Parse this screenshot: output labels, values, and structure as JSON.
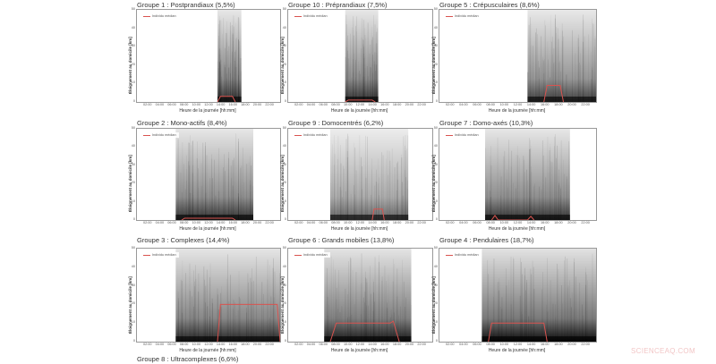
{
  "chart_data": [
    {
      "type": "line",
      "title": "Groupe 1 : Postprandiaux (5,5%)",
      "xlabel": "Heure de la journée [hh:mm]",
      "ylabel": "Éloignement au domicile [km]",
      "ylim": [
        0,
        50
      ],
      "yticks": [
        "0",
        "10",
        "20",
        "30",
        "40",
        "50"
      ],
      "xticks": [
        "02:00",
        "04:00",
        "06:00",
        "08:00",
        "10:00",
        "12:00",
        "14:00",
        "16:00",
        "18:00",
        "20:00",
        "22:00"
      ],
      "legend": [
        "Individu médian"
      ],
      "density": {
        "start": 13.5,
        "end": 17.5,
        "peak": 0.8
      },
      "series": [
        {
          "name": "Individu médian",
          "x": [
            13.5,
            14,
            15,
            16,
            16.5
          ],
          "y": [
            0,
            3,
            3,
            3,
            0
          ]
        }
      ]
    },
    {
      "type": "line",
      "title": "Groupe 10 : Préprandiaux (7,5%)",
      "xlabel": "Heure de la journée [hh:mm]",
      "ylabel": "Éloignement au domicile [km]",
      "ylim": [
        0,
        50
      ],
      "yticks": [
        "0",
        "10",
        "20",
        "30",
        "40",
        "50"
      ],
      "xticks": [
        "02:00",
        "04:00",
        "06:00",
        "08:00",
        "10:00",
        "12:00",
        "14:00",
        "16:00",
        "18:00",
        "20:00",
        "22:00"
      ],
      "legend": [
        "Individu médian"
      ],
      "density": {
        "start": 9.5,
        "end": 15,
        "peak": 0.8
      },
      "series": [
        {
          "name": "Individu médian",
          "x": [
            9.5,
            10,
            14,
            14.5
          ],
          "y": [
            0,
            1,
            1,
            0
          ]
        }
      ]
    },
    {
      "type": "line",
      "title": "Groupe 5 : Crépusculaires (8,6%)",
      "xlabel": "Heure de la journée [hh:mm]",
      "ylabel": "Éloignement au domicile [km]",
      "ylim": [
        0,
        50
      ],
      "yticks": [
        "0",
        "10",
        "20",
        "30",
        "40",
        "50"
      ],
      "xticks": [
        "02:00",
        "04:00",
        "06:00",
        "08:00",
        "10:00",
        "12:00",
        "14:00",
        "16:00",
        "18:00",
        "20:00",
        "22:00"
      ],
      "legend": [
        "Individu médian"
      ],
      "density": {
        "start": 13.5,
        "end": 24,
        "peak": 0.75
      },
      "series": [
        {
          "name": "Individu médian",
          "x": [
            16,
            16.5,
            18.5,
            19
          ],
          "y": [
            0,
            9,
            9,
            0
          ]
        }
      ]
    },
    {
      "type": "line",
      "title": "Groupe 2 : Mono-actifs (8,4%)",
      "xlabel": "Heure de la journée [hh:mm]",
      "ylabel": "Éloignement au domicile [km]",
      "ylim": [
        0,
        50
      ],
      "yticks": [
        "0",
        "10",
        "20",
        "30",
        "40",
        "50"
      ],
      "xticks": [
        "02:00",
        "04:00",
        "06:00",
        "08:00",
        "10:00",
        "12:00",
        "14:00",
        "16:00",
        "18:00",
        "20:00",
        "22:00"
      ],
      "legend": [
        "Individu médian"
      ],
      "density": {
        "start": 6.5,
        "end": 19.5,
        "peak": 0.8
      },
      "series": [
        {
          "name": "Individu médian",
          "x": [
            7.5,
            8,
            16,
            16.5
          ],
          "y": [
            0,
            1,
            1,
            0
          ]
        }
      ]
    },
    {
      "type": "line",
      "title": "Groupe 9 : Domocentrés (6,2%)",
      "xlabel": "Heure de la journée [hh:mm]",
      "ylabel": "Éloignement au domicile [km]",
      "ylim": [
        0,
        50
      ],
      "yticks": [
        "0",
        "10",
        "20",
        "30",
        "40",
        "50"
      ],
      "xticks": [
        "02:00",
        "04:00",
        "06:00",
        "08:00",
        "10:00",
        "12:00",
        "14:00",
        "16:00",
        "18:00",
        "20:00",
        "22:00"
      ],
      "legend": [
        "Individu médian"
      ],
      "density": {
        "start": 7,
        "end": 20,
        "peak": 0.6
      },
      "series": [
        {
          "name": "Individu médian",
          "x": [
            14,
            14.3,
            15.7,
            16
          ],
          "y": [
            0,
            6,
            6,
            0
          ]
        }
      ]
    },
    {
      "type": "line",
      "title": "Groupe 7 : Domo-axés (10,3%)",
      "xlabel": "Heure de la journée [hh:mm]",
      "ylabel": "Éloignement au domicile [km]",
      "ylim": [
        0,
        50
      ],
      "yticks": [
        "0",
        "10",
        "20",
        "30",
        "40",
        "50"
      ],
      "xticks": [
        "02:00",
        "04:00",
        "06:00",
        "08:00",
        "10:00",
        "12:00",
        "14:00",
        "16:00",
        "18:00",
        "20:00",
        "22:00"
      ],
      "legend": [
        "Individu médian"
      ],
      "density": {
        "start": 7,
        "end": 20,
        "peak": 0.8
      },
      "series": [
        {
          "name": "Individu médian",
          "x": [
            8,
            8.5,
            9,
            13.5,
            14,
            14.5
          ],
          "y": [
            0,
            2.5,
            0,
            0,
            2,
            0
          ]
        }
      ]
    },
    {
      "type": "line",
      "title": "Groupe 3 : Complexes (14,4%)",
      "xlabel": "Heure de la journée [hh:mm]",
      "ylabel": "Éloignement au domicile [km]",
      "ylim": [
        0,
        50
      ],
      "yticks": [
        "0",
        "10",
        "20",
        "30",
        "40",
        "50"
      ],
      "xticks": [
        "02:00",
        "04:00",
        "06:00",
        "08:00",
        "10:00",
        "12:00",
        "14:00",
        "16:00",
        "18:00",
        "20:00",
        "22:00"
      ],
      "legend": [
        "Individu médian"
      ],
      "density": {
        "start": 6.5,
        "end": 24,
        "peak": 0.85
      },
      "series": [
        {
          "name": "Individu médian",
          "x": [
            13.5,
            14,
            23.5,
            24
          ],
          "y": [
            0,
            20,
            20,
            0
          ]
        }
      ]
    },
    {
      "type": "line",
      "title": "Groupe 6 : Grands mobiles (13,8%)",
      "xlabel": "Heure de la journée [hh:mm]",
      "ylabel": "Éloignement au domicile [km]",
      "ylim": [
        0,
        50
      ],
      "yticks": [
        "0",
        "10",
        "20",
        "30",
        "40",
        "50"
      ],
      "xticks": [
        "02:00",
        "04:00",
        "06:00",
        "08:00",
        "10:00",
        "12:00",
        "14:00",
        "16:00",
        "18:00",
        "20:00",
        "22:00"
      ],
      "legend": [
        "Individu médian"
      ],
      "density": {
        "start": 6,
        "end": 20.5,
        "peak": 0.9
      },
      "series": [
        {
          "name": "Individu médian",
          "x": [
            7,
            8,
            17,
            17.5,
            18.5
          ],
          "y": [
            0,
            10,
            10,
            11,
            0
          ]
        }
      ]
    },
    {
      "type": "line",
      "title": "Groupe 4 : Pendulaires (18,7%)",
      "xlabel": "Heure de la journée [hh:mm]",
      "ylabel": "Éloignement au domicile [km]",
      "ylim": [
        0,
        50
      ],
      "yticks": [
        "0",
        "10",
        "20",
        "30",
        "40",
        "50"
      ],
      "xticks": [
        "02:00",
        "04:00",
        "06:00",
        "08:00",
        "10:00",
        "12:00",
        "14:00",
        "16:00",
        "18:00",
        "20:00",
        "22:00"
      ],
      "legend": [
        "Individu médian"
      ],
      "density": {
        "start": 6.5,
        "end": 24,
        "peak": 0.95
      },
      "series": [
        {
          "name": "Individu médian",
          "x": [
            7.5,
            8,
            16,
            16.5
          ],
          "y": [
            0,
            10,
            10,
            0
          ]
        }
      ]
    }
  ],
  "footer": {
    "next_group_title": "Groupe 8 : Ultracomplexes (6,6%)",
    "watermark": "SCIENCEAQ.COM"
  },
  "colors": {
    "median_line": "#d9534f",
    "trajectories": "#000000",
    "frame": "#999999"
  }
}
